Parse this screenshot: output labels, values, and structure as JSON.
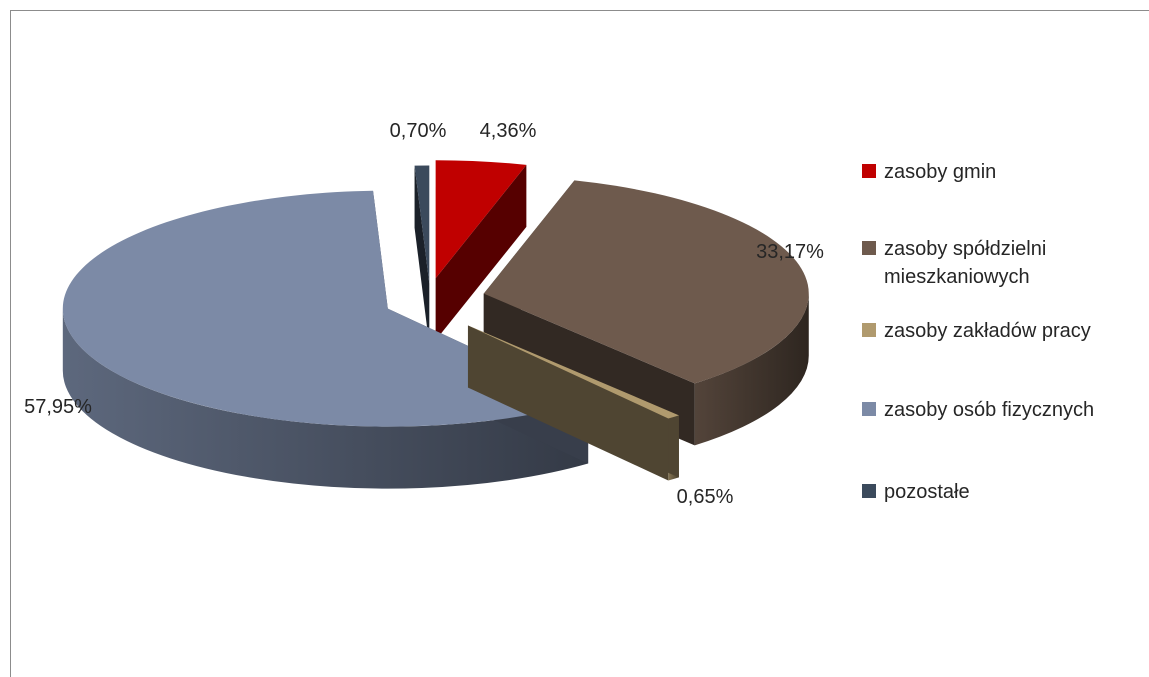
{
  "chart_data": {
    "type": "pie",
    "title": "",
    "three_d": true,
    "exploded": true,
    "legend_position": "right",
    "slices": [
      {
        "name": "zasoby gmin",
        "value": 4.36,
        "label": "4,36%",
        "color": "#c00000"
      },
      {
        "name": "zasoby spółdzielni mieszkaniowych",
        "value": 33.17,
        "label": "33,17%",
        "color": "#6e5a4d"
      },
      {
        "name": "zasoby zakładów pracy",
        "value": 0.65,
        "label": "0,65%",
        "color": "#b09a6e"
      },
      {
        "name": "zasoby osób fizycznych",
        "value": 57.95,
        "label": "57,95%",
        "color": "#7c8aa6"
      },
      {
        "name": "pozostałe",
        "value": 0.7,
        "label": "0,70%",
        "color": "#3b4a5c"
      }
    ]
  },
  "legend": {
    "items": [
      {
        "label": "zasoby gmin",
        "color": "#c00000"
      },
      {
        "label": "zasoby spółdzielni mieszkaniowych",
        "color": "#6e5a4d"
      },
      {
        "label": "zasoby zakładów pracy",
        "color": "#b09a6e"
      },
      {
        "label": "zasoby osób fizycznych",
        "color": "#7c8aa6"
      },
      {
        "label": "pozostałe",
        "color": "#3b4a5c"
      }
    ]
  }
}
